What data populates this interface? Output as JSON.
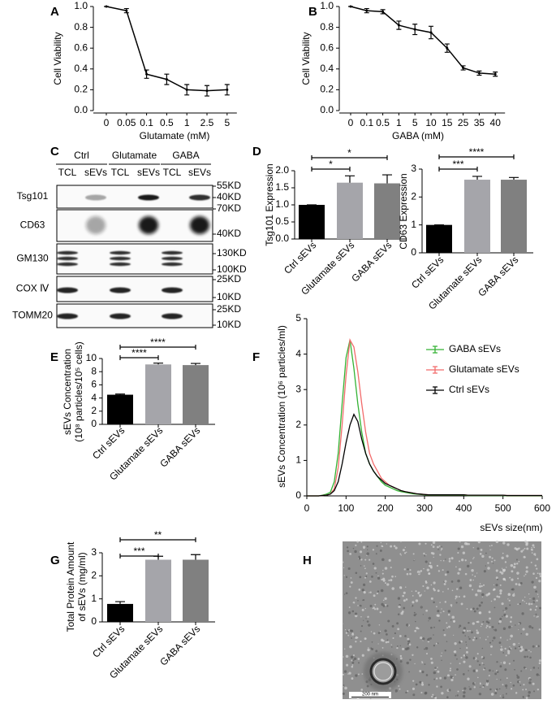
{
  "chart_data": [
    {
      "panel": "A",
      "type": "line",
      "categories": [
        "0",
        "0.05",
        "0.1",
        "0.5",
        "1",
        "2.5",
        "5"
      ],
      "values": [
        1.0,
        0.96,
        0.35,
        0.3,
        0.2,
        0.19,
        0.2
      ],
      "errors": [
        0,
        0.02,
        0.04,
        0.05,
        0.05,
        0.05,
        0.05
      ],
      "color": "#000000",
      "x_label": "Glutamate (mM)",
      "y_label": "Cell Viability",
      "ylim": [
        0,
        1
      ],
      "yticks": [
        {
          "value": 0,
          "label": "0.0"
        },
        0.2,
        0.4,
        0.6,
        0.8,
        {
          "value": 1,
          "label": "1.0"
        }
      ]
    },
    {
      "panel": "B",
      "type": "line",
      "categories": [
        "0",
        "0.1",
        "0.5",
        "1",
        "5",
        "10",
        "15",
        "25",
        "35",
        "40"
      ],
      "values": [
        1.0,
        0.96,
        0.95,
        0.82,
        0.78,
        0.75,
        0.6,
        0.41,
        0.36,
        0.35
      ],
      "errors": [
        0,
        0.02,
        0.02,
        0.04,
        0.05,
        0.06,
        0.04,
        0.02,
        0.02,
        0.02
      ],
      "color": "#000000",
      "x_label": "GABA (mM)",
      "y_label": "Cell Viability",
      "ylim": [
        0,
        1
      ],
      "yticks": [
        {
          "value": 0,
          "label": "0.0"
        },
        0.2,
        0.4,
        0.6,
        0.8,
        {
          "value": 1,
          "label": "1.0"
        }
      ]
    },
    {
      "panel": "D",
      "type": "bar",
      "categories": [
        "Ctrl sEVs",
        "Glutamate sEVs",
        "GABA sEVs"
      ],
      "values": [
        1.0,
        1.65,
        1.63
      ],
      "errors": [
        0,
        0.2,
        0.25
      ],
      "colors": [
        "#000000",
        "#a5a5aa",
        "#808080"
      ],
      "y_label": "Tsg101 Expression",
      "ylim": [
        0,
        2
      ],
      "yticks": [
        {
          "value": 0,
          "label": "0.0"
        },
        0.5,
        {
          "value": 1,
          "label": "1.0"
        },
        1.5,
        {
          "value": 2,
          "label": "2.0"
        }
      ],
      "significance": [
        "*",
        "*"
      ]
    },
    {
      "type": "bar",
      "categories": [
        "Ctrl sEVs",
        "Glutamate sEVs",
        "GABA sEVs"
      ],
      "values": [
        1.0,
        2.62,
        2.62
      ],
      "errors": [
        0,
        0.12,
        0.08
      ],
      "colors": [
        "#000000",
        "#a5a5aa",
        "#808080"
      ],
      "y_label": "CD63 Expression",
      "ylim": [
        0,
        3
      ],
      "yticks": [
        0,
        1,
        2,
        3
      ],
      "significance": [
        "***",
        "****"
      ]
    },
    {
      "panel": "E",
      "type": "bar",
      "categories": [
        "Ctrl sEVs",
        "Glutamate sEVs",
        "GABA sEVs"
      ],
      "values": [
        4.5,
        9.1,
        9.0
      ],
      "errors": [
        0.1,
        0.2,
        0.25
      ],
      "colors": [
        "#000000",
        "#a5a5aa",
        "#808080"
      ],
      "y_label": [
        "sEVs Concentration",
        "(10⁸ particles/10⁵ cells)"
      ],
      "ylim": [
        0,
        10
      ],
      "yticks": [
        0,
        2,
        4,
        6,
        8,
        10
      ],
      "significance": [
        "****",
        "****"
      ]
    },
    {
      "panel": "F",
      "type": "line",
      "x": [
        0,
        10,
        20,
        30,
        40,
        50,
        60,
        70,
        80,
        90,
        100,
        110,
        120,
        130,
        140,
        150,
        160,
        170,
        180,
        190,
        200,
        210,
        220,
        230,
        240,
        250,
        260,
        270,
        280,
        290,
        300,
        310,
        320,
        330,
        340,
        350,
        360,
        370,
        380,
        390,
        400,
        410,
        420,
        430,
        440,
        450,
        460,
        470,
        480,
        490,
        500,
        510,
        520,
        530,
        540,
        550,
        560,
        570,
        580,
        590,
        600
      ],
      "series": [
        {
          "name": "GABA sEVs",
          "color": "#33b233",
          "values": [
            0,
            0,
            0,
            0,
            0.02,
            0.05,
            0.1,
            0.4,
            1.2,
            2.6,
            3.9,
            4.4,
            3.6,
            2.6,
            1.8,
            1.2,
            0.9,
            0.7,
            0.55,
            0.4,
            0.3,
            0.25,
            0.2,
            0.15,
            0.12,
            0.1,
            0.08,
            0.06,
            0.05,
            0.04,
            0.03,
            0.02,
            0.02,
            0.02,
            0.02,
            0.02,
            0.02,
            0.02,
            0.02,
            0.02,
            0.02,
            0.01,
            0.01,
            0.01,
            0.01,
            0.01,
            0.01,
            0.01,
            0.01,
            0.01,
            0.01,
            0,
            0,
            0,
            0,
            0,
            0,
            0,
            0,
            0,
            0
          ]
        },
        {
          "name": "Glutamate sEVs",
          "color": "#f26b6b",
          "values": [
            0,
            0,
            0,
            0,
            0.01,
            0.02,
            0.05,
            0.2,
            0.8,
            2.0,
            3.4,
            4.4,
            4.2,
            3.5,
            2.6,
            1.8,
            1.2,
            0.9,
            0.7,
            0.5,
            0.4,
            0.3,
            0.25,
            0.2,
            0.15,
            0.12,
            0.1,
            0.08,
            0.06,
            0.05,
            0.04,
            0.03,
            0.03,
            0.03,
            0.03,
            0.03,
            0.03,
            0.03,
            0.03,
            0.03,
            0.03,
            0.02,
            0.02,
            0.02,
            0.02,
            0.02,
            0.02,
            0.02,
            0.02,
            0.02,
            0.02,
            0.01,
            0.01,
            0.01,
            0.01,
            0.01,
            0.01,
            0.01,
            0.01,
            0.01,
            0.01
          ]
        },
        {
          "name": "Ctrl sEVs",
          "color": "#000000",
          "values": [
            0,
            0,
            0,
            0,
            0.01,
            0.02,
            0.05,
            0.15,
            0.4,
            0.9,
            1.5,
            2.0,
            2.3,
            2.1,
            1.6,
            1.2,
            0.9,
            0.7,
            0.55,
            0.45,
            0.35,
            0.3,
            0.25,
            0.2,
            0.15,
            0.12,
            0.1,
            0.08,
            0.06,
            0.05,
            0.04,
            0.03,
            0.03,
            0.03,
            0.03,
            0.03,
            0.03,
            0.03,
            0.03,
            0.03,
            0.03,
            0.02,
            0.02,
            0.02,
            0.02,
            0.02,
            0.02,
            0.02,
            0.02,
            0.02,
            0.02,
            0.01,
            0.01,
            0.01,
            0.01,
            0.01,
            0.01,
            0.01,
            0.01,
            0.01,
            0.01
          ]
        }
      ],
      "x_label": "sEVs size(nm)",
      "y_label": "sEVs Concentration (10⁶ particles/ml)",
      "xlim": [
        0,
        600
      ],
      "xticks": [
        0,
        100,
        200,
        300,
        400,
        500,
        600
      ],
      "ylim": [
        0,
        5
      ],
      "yticks": [
        0,
        1,
        2,
        3,
        4,
        5
      ]
    },
    {
      "panel": "G",
      "type": "bar",
      "categories": [
        "Ctrl sEVs",
        "Glutamate sEVs",
        "GABA sEVs"
      ],
      "values": [
        0.78,
        2.7,
        2.7
      ],
      "errors": [
        0.1,
        0.15,
        0.22
      ],
      "colors": [
        "#000000",
        "#a5a5aa",
        "#808080"
      ],
      "y_label": [
        "Total Protein Amount",
        "of sEVs (mg/ml)"
      ],
      "ylim": [
        0,
        3
      ],
      "yticks": [
        0,
        1,
        2,
        3
      ],
      "significance": [
        "***",
        "**"
      ]
    }
  ],
  "blot": {
    "panel": "C",
    "groups": [
      "Ctrl",
      "Glutamate",
      "GABA"
    ],
    "lanes": [
      "TCL",
      "sEVs",
      "TCL",
      "sEVs",
      "TCL",
      "sEVs"
    ],
    "rows": [
      {
        "protein": "Tsg101",
        "markers": [
          "55KD",
          "40KD"
        ]
      },
      {
        "protein": "CD63",
        "markers": [
          "70KD",
          "40KD"
        ]
      },
      {
        "protein": "GM130",
        "markers": [
          "130KD",
          "100KD"
        ]
      },
      {
        "protein": "COX Ⅳ",
        "markers": [
          "25KD",
          "10KD"
        ]
      },
      {
        "protein": "TOMM20",
        "markers": [
          "25KD",
          "10KD"
        ]
      }
    ]
  },
  "micrograph": {
    "panel": "H",
    "scale_bar": "200 nm"
  }
}
